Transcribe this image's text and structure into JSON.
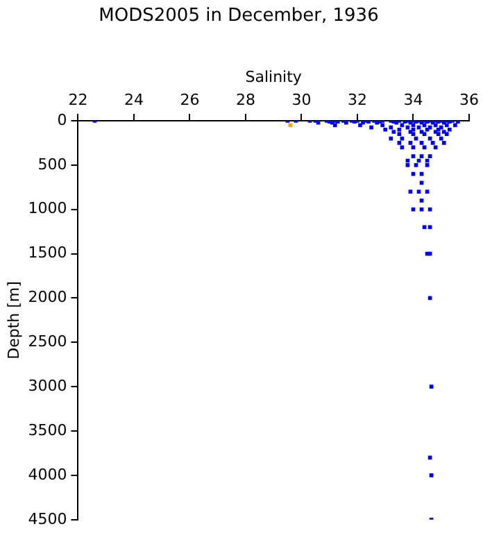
{
  "chart_data": {
    "type": "scatter",
    "title": "MODS2005 in December, 1936",
    "xlabel": "Salinity",
    "ylabel": "Depth [m]",
    "xlim": [
      22,
      36
    ],
    "xticks": [
      22,
      24,
      26,
      28,
      30,
      32,
      34,
      36
    ],
    "ylim": [
      4500,
      0
    ],
    "yticks": [
      0,
      500,
      1000,
      1500,
      2000,
      2500,
      3000,
      3500,
      4000,
      4500
    ],
    "grid": false,
    "legend": false,
    "marker": "square",
    "series": [
      {
        "color": "#0000ff",
        "x": [
          22.6,
          29.5,
          29.8,
          30.3,
          30.5,
          30.9,
          31.2,
          31.5,
          31.8,
          32.0,
          32.3,
          32.6,
          32.9,
          33.2,
          33.5,
          33.8,
          34.0,
          34.2,
          34.4,
          34.6,
          34.8,
          35.0,
          35.2,
          35.4,
          31.0,
          31.3,
          31.9,
          32.4,
          32.8,
          33.3,
          33.7,
          34.1,
          34.5,
          34.9,
          35.3,
          35.6,
          30.6,
          31.1,
          31.6,
          32.2,
          32.7,
          33.4,
          33.9,
          34.3,
          34.7,
          35.1,
          31.2,
          32.1,
          32.9,
          33.6,
          34.0,
          34.4,
          34.8,
          35.2,
          35.5,
          32.5,
          33.2,
          33.8,
          34.2,
          34.6,
          35.0,
          33.0,
          33.5,
          34.0,
          34.5,
          34.9,
          35.3,
          33.3,
          33.9,
          34.3,
          34.8,
          35.1,
          33.5,
          34.0,
          34.4,
          34.9,
          35.2,
          33.2,
          33.6,
          34.1,
          34.6,
          35.0,
          33.5,
          33.9,
          34.3,
          34.7,
          35.1,
          33.6,
          34.0,
          34.4,
          34.8,
          34.0,
          34.3,
          34.6,
          33.8,
          34.2,
          34.5,
          33.8,
          34.1,
          34.5,
          34.0,
          34.3,
          34.3,
          33.9,
          34.2,
          34.5,
          34.3,
          34.0,
          34.3,
          34.6,
          34.4,
          34.6,
          34.5,
          34.6,
          34.6,
          34.65,
          34.6,
          34.65,
          34.65
        ],
        "values": [
          0,
          0,
          0,
          0,
          0,
          0,
          0,
          0,
          0,
          0,
          0,
          0,
          0,
          0,
          0,
          0,
          0,
          0,
          0,
          0,
          0,
          0,
          0,
          0,
          10,
          10,
          10,
          10,
          10,
          10,
          10,
          10,
          10,
          10,
          10,
          10,
          20,
          20,
          20,
          20,
          20,
          20,
          20,
          20,
          20,
          20,
          50,
          50,
          50,
          50,
          50,
          50,
          50,
          50,
          50,
          75,
          75,
          75,
          75,
          75,
          75,
          100,
          100,
          100,
          100,
          100,
          100,
          125,
          125,
          125,
          125,
          125,
          150,
          150,
          150,
          150,
          150,
          200,
          200,
          200,
          200,
          200,
          250,
          250,
          250,
          250,
          250,
          300,
          300,
          300,
          300,
          400,
          400,
          400,
          450,
          450,
          450,
          500,
          500,
          500,
          600,
          600,
          700,
          800,
          800,
          800,
          900,
          1000,
          1000,
          1000,
          1200,
          1200,
          1500,
          1500,
          2000,
          3000,
          3800,
          4000,
          4500
        ]
      },
      {
        "color": "#ffa500",
        "x": [
          29.6
        ],
        "values": [
          50
        ]
      }
    ]
  }
}
